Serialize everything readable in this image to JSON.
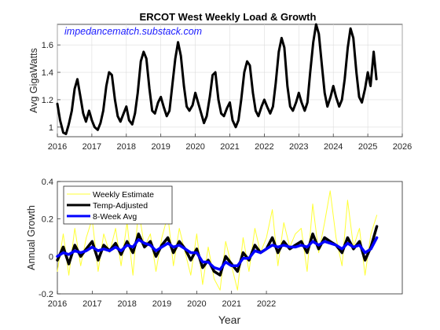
{
  "chart_data": [
    {
      "type": "line",
      "title": "ERCOT West Weekly Load & Growth",
      "annotation": "impedancematch.substack.com",
      "xlabel": "",
      "ylabel": "Avg GigaWatts",
      "xlim": [
        2016,
        2026
      ],
      "ylim": [
        0.93,
        1.75
      ],
      "xticks": [
        "2016",
        "2017",
        "2018",
        "2019",
        "2020",
        "2021",
        "2022",
        "2023",
        "2024",
        "2025",
        "2026"
      ],
      "yticks": [
        "1",
        "1.2",
        "1.4",
        "1.6"
      ],
      "grid": true,
      "series": [
        {
          "color": "#000000",
          "x": [
            2016.0,
            2016.08,
            2016.17,
            2016.25,
            2016.33,
            2016.42,
            2016.5,
            2016.58,
            2016.67,
            2016.75,
            2016.83,
            2016.92,
            2017.0,
            2017.08,
            2017.17,
            2017.25,
            2017.33,
            2017.42,
            2017.5,
            2017.58,
            2017.67,
            2017.75,
            2017.83,
            2017.92,
            2018.0,
            2018.08,
            2018.17,
            2018.25,
            2018.33,
            2018.42,
            2018.5,
            2018.58,
            2018.67,
            2018.75,
            2018.83,
            2018.92,
            2019.0,
            2019.08,
            2019.17,
            2019.25,
            2019.33,
            2019.42,
            2019.5,
            2019.58,
            2019.67,
            2019.75,
            2019.83,
            2019.92,
            2020.0,
            2020.08,
            2020.17,
            2020.25,
            2020.33,
            2020.42,
            2020.5,
            2020.58,
            2020.67,
            2020.75,
            2020.83,
            2020.92,
            2021.0,
            2021.08,
            2021.17,
            2021.25,
            2021.33,
            2021.42,
            2021.5,
            2021.58,
            2021.67,
            2021.75,
            2021.83,
            2021.92,
            2022.0,
            2022.08,
            2022.17,
            2022.25,
            2022.33,
            2022.42,
            2022.5,
            2022.58,
            2022.67,
            2022.75,
            2022.83,
            2022.92,
            2023.0,
            2023.08,
            2023.17,
            2023.25,
            2023.33,
            2023.42,
            2023.5,
            2023.58,
            2023.67,
            2023.75,
            2023.83,
            2023.92,
            2024.0,
            2024.08,
            2024.17,
            2024.25,
            2024.33,
            2024.42,
            2024.5,
            2024.58,
            2024.67,
            2024.75,
            2024.83,
            2024.92,
            2025.0,
            2025.08,
            2025.17,
            2025.25
          ],
          "y": [
            1.17,
            1.05,
            0.96,
            0.95,
            1.02,
            1.12,
            1.28,
            1.35,
            1.22,
            1.1,
            1.04,
            1.12,
            1.05,
            1.0,
            0.98,
            1.03,
            1.12,
            1.3,
            1.4,
            1.38,
            1.2,
            1.08,
            1.04,
            1.1,
            1.15,
            1.05,
            1.02,
            1.1,
            1.25,
            1.48,
            1.55,
            1.5,
            1.28,
            1.12,
            1.1,
            1.18,
            1.22,
            1.15,
            1.08,
            1.12,
            1.3,
            1.5,
            1.62,
            1.52,
            1.3,
            1.15,
            1.12,
            1.16,
            1.25,
            1.18,
            1.1,
            1.03,
            1.08,
            1.22,
            1.38,
            1.4,
            1.2,
            1.1,
            1.08,
            1.14,
            1.18,
            1.05,
            1.0,
            1.05,
            1.2,
            1.4,
            1.48,
            1.45,
            1.25,
            1.12,
            1.08,
            1.15,
            1.2,
            1.15,
            1.1,
            1.15,
            1.32,
            1.55,
            1.65,
            1.58,
            1.3,
            1.15,
            1.12,
            1.18,
            1.25,
            1.18,
            1.12,
            1.18,
            1.4,
            1.62,
            1.75,
            1.68,
            1.45,
            1.25,
            1.15,
            1.22,
            1.3,
            1.22,
            1.15,
            1.2,
            1.35,
            1.58,
            1.72,
            1.65,
            1.4,
            1.22,
            1.18,
            1.28,
            1.4,
            1.3,
            1.55,
            1.35
          ]
        }
      ]
    },
    {
      "type": "line",
      "title": "",
      "xlabel": "Year",
      "ylabel": "Annual Growth",
      "xlim": [
        2016,
        2025.9
      ],
      "ylim": [
        -0.2,
        0.4
      ],
      "xticks": [
        "2016",
        "2017",
        "2018",
        "2019",
        "2020",
        "2021",
        "2022"
      ],
      "yticks": [
        "-0.2",
        "0",
        "0.2",
        "0.4"
      ],
      "grid": false,
      "legend": "top-left",
      "series": [
        {
          "name": "Weekly Estimate",
          "color": "#ffff33",
          "x": [
            2016.0,
            2016.17,
            2016.33,
            2016.5,
            2016.67,
            2016.83,
            2017.0,
            2017.17,
            2017.33,
            2017.5,
            2017.67,
            2017.83,
            2018.0,
            2018.17,
            2018.33,
            2018.5,
            2018.67,
            2018.83,
            2019.0,
            2019.17,
            2019.33,
            2019.5,
            2019.67,
            2019.83,
            2020.0,
            2020.17,
            2020.33,
            2020.5,
            2020.67,
            2020.83,
            2021.0,
            2021.17,
            2021.33,
            2021.5,
            2021.67,
            2021.83,
            2022.0,
            2022.17,
            2022.33,
            2022.5,
            2022.67,
            2022.83,
            2023.0,
            2023.17,
            2023.33,
            2023.5,
            2023.67,
            2023.83,
            2024.0,
            2024.17,
            2024.33,
            2024.5,
            2024.67,
            2024.83,
            2025.0,
            2025.17
          ],
          "y": [
            -0.08,
            0.12,
            -0.1,
            0.15,
            -0.05,
            0.1,
            0.2,
            -0.08,
            0.12,
            0.02,
            0.15,
            -0.05,
            0.18,
            -0.1,
            0.25,
            0.05,
            0.12,
            -0.08,
            0.1,
            0.22,
            -0.05,
            0.15,
            0.02,
            -0.1,
            0.12,
            -0.15,
            0.05,
            -0.12,
            -0.18,
            0.08,
            -0.05,
            -0.18,
            0.1,
            -0.08,
            0.15,
            0.02,
            0.1,
            0.25,
            -0.05,
            0.18,
            0.05,
            0.12,
            0.15,
            -0.08,
            0.28,
            0.02,
            0.18,
            0.35,
            0.1,
            -0.05,
            0.3,
            0.05,
            0.15,
            -0.1,
            0.12,
            0.22
          ]
        },
        {
          "name": "Temp-Adjusted",
          "color": "#000000",
          "x": [
            2016.0,
            2016.17,
            2016.33,
            2016.5,
            2016.67,
            2016.83,
            2017.0,
            2017.17,
            2017.33,
            2017.5,
            2017.67,
            2017.83,
            2018.0,
            2018.17,
            2018.33,
            2018.5,
            2018.67,
            2018.83,
            2019.0,
            2019.17,
            2019.33,
            2019.5,
            2019.67,
            2019.83,
            2020.0,
            2020.17,
            2020.33,
            2020.5,
            2020.67,
            2020.83,
            2021.0,
            2021.17,
            2021.33,
            2021.5,
            2021.67,
            2021.83,
            2022.0,
            2022.17,
            2022.33,
            2022.5,
            2022.67,
            2022.83,
            2023.0,
            2023.17,
            2023.33,
            2023.5,
            2023.67,
            2023.83,
            2024.0,
            2024.17,
            2024.33,
            2024.5,
            2024.67,
            2024.83,
            2025.0,
            2025.17
          ],
          "y": [
            -0.02,
            0.05,
            -0.04,
            0.06,
            0.0,
            0.04,
            0.08,
            -0.02,
            0.06,
            0.03,
            0.07,
            0.01,
            0.08,
            0.02,
            0.12,
            0.05,
            0.08,
            0.0,
            0.06,
            0.1,
            0.02,
            0.08,
            0.04,
            -0.02,
            0.04,
            -0.06,
            -0.02,
            -0.08,
            -0.1,
            0.0,
            -0.04,
            -0.08,
            0.02,
            -0.02,
            0.06,
            0.02,
            0.04,
            0.1,
            0.02,
            0.08,
            0.04,
            0.06,
            0.08,
            0.02,
            0.12,
            0.04,
            0.1,
            0.08,
            0.06,
            0.02,
            0.1,
            0.04,
            0.08,
            -0.02,
            0.05,
            0.16
          ]
        },
        {
          "name": "8-Week Avg",
          "color": "#0000ff",
          "x": [
            2016.0,
            2016.17,
            2016.33,
            2016.5,
            2016.67,
            2016.83,
            2017.0,
            2017.17,
            2017.33,
            2017.5,
            2017.67,
            2017.83,
            2018.0,
            2018.17,
            2018.33,
            2018.5,
            2018.67,
            2018.83,
            2019.0,
            2019.17,
            2019.33,
            2019.5,
            2019.67,
            2019.83,
            2020.0,
            2020.17,
            2020.33,
            2020.5,
            2020.67,
            2020.83,
            2021.0,
            2021.17,
            2021.33,
            2021.5,
            2021.67,
            2021.83,
            2022.0,
            2022.17,
            2022.33,
            2022.5,
            2022.67,
            2022.83,
            2023.0,
            2023.17,
            2023.33,
            2023.5,
            2023.67,
            2023.83,
            2024.0,
            2024.17,
            2024.33,
            2024.5,
            2024.67,
            2024.83,
            2025.0,
            2025.17
          ],
          "y": [
            0.0,
            0.02,
            0.01,
            0.03,
            0.02,
            0.03,
            0.05,
            0.03,
            0.04,
            0.03,
            0.05,
            0.03,
            0.06,
            0.05,
            0.09,
            0.07,
            0.06,
            0.03,
            0.05,
            0.07,
            0.05,
            0.06,
            0.04,
            0.02,
            0.02,
            -0.03,
            -0.03,
            -0.06,
            -0.07,
            -0.03,
            -0.05,
            -0.05,
            -0.01,
            -0.01,
            0.03,
            0.02,
            0.04,
            0.06,
            0.05,
            0.06,
            0.05,
            0.05,
            0.06,
            0.05,
            0.08,
            0.06,
            0.08,
            0.07,
            0.06,
            0.04,
            0.07,
            0.05,
            0.06,
            0.02,
            0.04,
            0.1
          ]
        }
      ]
    }
  ]
}
